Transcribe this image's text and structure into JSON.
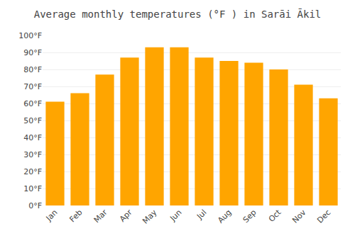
{
  "chart_data": {
    "type": "bar",
    "title": "Average monthly temperatures (°F ) in Sarāi Ākil",
    "categories": [
      "Jan",
      "Feb",
      "Mar",
      "Apr",
      "May",
      "Jun",
      "Jul",
      "Aug",
      "Sep",
      "Oct",
      "Nov",
      "Dec"
    ],
    "values": [
      61,
      66,
      77,
      87,
      93,
      93,
      87,
      85,
      84,
      80,
      71,
      63
    ],
    "color": "#FFA500",
    "ylim": [
      0,
      100
    ],
    "yticks": [
      {
        "value": 0,
        "label": "0°F"
      },
      {
        "value": 10,
        "label": "10°F"
      },
      {
        "value": 20,
        "label": "20°F"
      },
      {
        "value": 30,
        "label": "30°F"
      },
      {
        "value": 40,
        "label": "40°F"
      },
      {
        "value": 50,
        "label": "50°F"
      },
      {
        "value": 60,
        "label": "60°F"
      },
      {
        "value": 70,
        "label": "70°F"
      },
      {
        "value": 80,
        "label": "80°F"
      },
      {
        "value": 90,
        "label": "90°F"
      },
      {
        "value": 100,
        "label": "100°F"
      }
    ],
    "grid": true
  }
}
